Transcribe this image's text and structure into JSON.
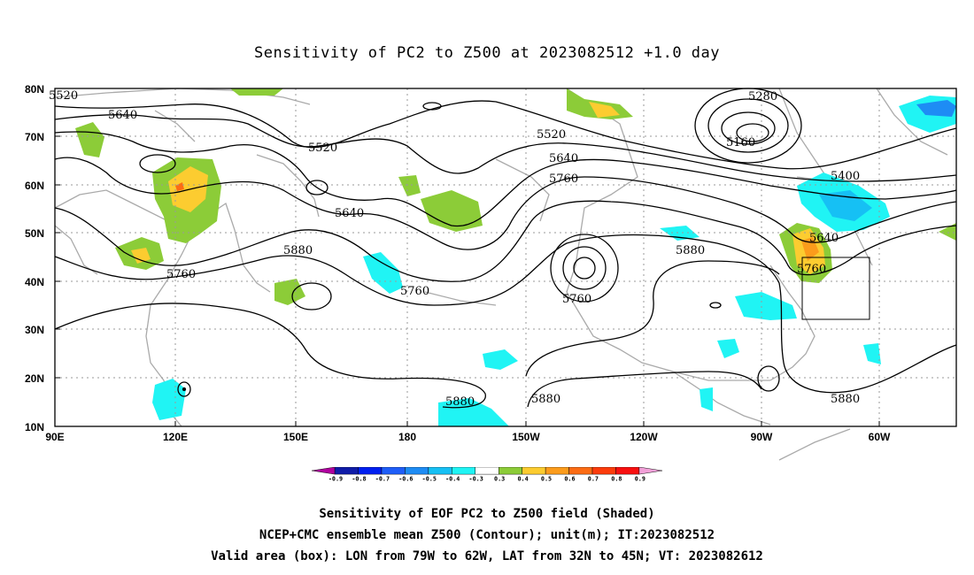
{
  "title": "Sensitivity of PC2 to Z500 at 2023082512 +1.0 day",
  "map": {
    "lon_labels": [
      "90E",
      "120E",
      "150E",
      "180",
      "150W",
      "120W",
      "90W",
      "60W"
    ],
    "lat_labels": [
      "80N",
      "70N",
      "60N",
      "50N",
      "40N",
      "30N",
      "20N",
      "10N"
    ],
    "contour_labels": [
      "5520",
      "5640",
      "5520",
      "5520",
      "5640",
      "5760",
      "5280",
      "5160",
      "5400",
      "5640",
      "5760",
      "5880",
      "5760",
      "5880",
      "5760",
      "5880",
      "5880",
      "5880",
      "5760"
    ]
  },
  "colorbar": {
    "labels": [
      "-0.9",
      "-0.8",
      "-0.7",
      "-0.6",
      "-0.5",
      "-0.4",
      "-0.3",
      "0.3",
      "0.4",
      "0.5",
      "0.6",
      "0.7",
      "0.8",
      "0.9"
    ],
    "colors": [
      "#b0009f",
      "#101ca8",
      "#0020f0",
      "#1f5ef8",
      "#1e8cf4",
      "#16c0f4",
      "#20f4f4",
      "#ffffff",
      "#8ccc38",
      "#fccc30",
      "#fc9c1c",
      "#fc6c14",
      "#fc3c0c",
      "#f81010",
      "#f2a0d8"
    ]
  },
  "captions": {
    "line1": "Sensitivity of EOF PC2 to Z500 field (Shaded)",
    "line2": "NCEP+CMC ensemble mean Z500 (Contour); unit(m); IT:2023082512",
    "line3": "Valid area (box): LON from 79W to 62W, LAT from 32N to 45N; VT: 2023082612"
  }
}
